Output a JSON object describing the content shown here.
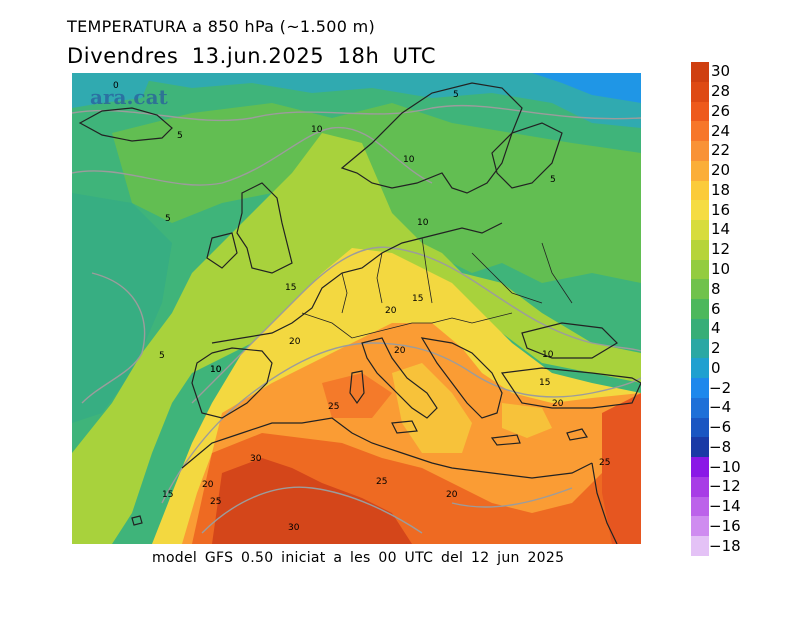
{
  "header": {
    "title": "TEMPERATURA a 850 hPa (~1.500 m)",
    "subtitle": "Divendres  13.jun.2025 18h UTC"
  },
  "map": {
    "watermark": "ara.cat",
    "contour_labels": [
      "0",
      "5",
      "5",
      "5",
      "5",
      "10",
      "10",
      "10",
      "5",
      "10",
      "15",
      "20",
      "15",
      "20",
      "20",
      "10",
      "10",
      "15",
      "25",
      "20",
      "25",
      "30",
      "25",
      "15",
      "20",
      "25",
      "30",
      "20"
    ]
  },
  "footer": "model GFS 0.50 iniciat a les 00 UTC del 12 jun 2025",
  "legend": {
    "items": [
      {
        "label": "30",
        "color": "#cf3f10"
      },
      {
        "label": "28",
        "color": "#de4a14"
      },
      {
        "label": "26",
        "color": "#ee5a1c"
      },
      {
        "label": "24",
        "color": "#f7772a"
      },
      {
        "label": "22",
        "color": "#f99236"
      },
      {
        "label": "20",
        "color": "#fbae38"
      },
      {
        "label": "18",
        "color": "#fbcb3a"
      },
      {
        "label": "16",
        "color": "#f5dc42"
      },
      {
        "label": "14",
        "color": "#d7dc3c"
      },
      {
        "label": "12",
        "color": "#b6d43a"
      },
      {
        "label": "10",
        "color": "#93cc40"
      },
      {
        "label": "8",
        "color": "#70c24c"
      },
      {
        "label": "6",
        "color": "#4db85c"
      },
      {
        "label": "4",
        "color": "#37ae78"
      },
      {
        "label": "2",
        "color": "#2aa8a4"
      },
      {
        "label": "0",
        "color": "#1fa0d0"
      },
      {
        "label": "−2",
        "color": "#1e88ec"
      },
      {
        "label": "−4",
        "color": "#1e70d8"
      },
      {
        "label": "−6",
        "color": "#1a56c2"
      },
      {
        "label": "−8",
        "color": "#1a3aa6"
      },
      {
        "label": "−10",
        "color": "#8a18e6"
      },
      {
        "label": "−12",
        "color": "#a83ce6"
      },
      {
        "label": "−14",
        "color": "#bc62ea"
      },
      {
        "label": "−16",
        "color": "#cf8cf0"
      },
      {
        "label": "−18",
        "color": "#e4c2f6"
      }
    ]
  }
}
